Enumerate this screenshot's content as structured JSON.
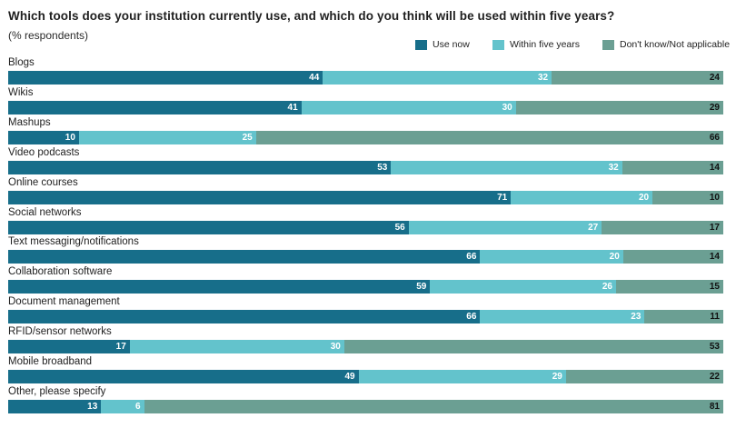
{
  "title": "Which tools does your institution currently use, and which do you think will be used within five years?",
  "subtitle": "(% respondents)",
  "colors": {
    "use_now": "#176e8a",
    "within_five": "#63c3cc",
    "dont_know": "#6b9f93"
  },
  "chart_data": {
    "type": "bar",
    "orientation": "horizontal",
    "stacked": true,
    "title": "Which tools does your institution currently use, and which do you think will be used within five years?",
    "subtitle": "(% respondents)",
    "legend_position": "top-right",
    "categories": [
      "Blogs",
      "Wikis",
      "Mashups",
      "Video podcasts",
      "Online courses",
      "Social networks",
      "Text messaging/notifications",
      "Collaboration software",
      "Document management",
      "RFID/sensor networks",
      "Mobile broadband",
      "Other, please specify"
    ],
    "series": [
      {
        "name": "Use now",
        "values": [
          44,
          41,
          10,
          53,
          71,
          56,
          66,
          59,
          66,
          17,
          49,
          13
        ]
      },
      {
        "name": "Within five years",
        "values": [
          32,
          30,
          25,
          32,
          20,
          27,
          20,
          26,
          23,
          30,
          29,
          6
        ]
      },
      {
        "name": "Don't know/Not applicable",
        "values": [
          24,
          29,
          66,
          14,
          10,
          17,
          14,
          15,
          11,
          53,
          22,
          81
        ]
      }
    ]
  }
}
